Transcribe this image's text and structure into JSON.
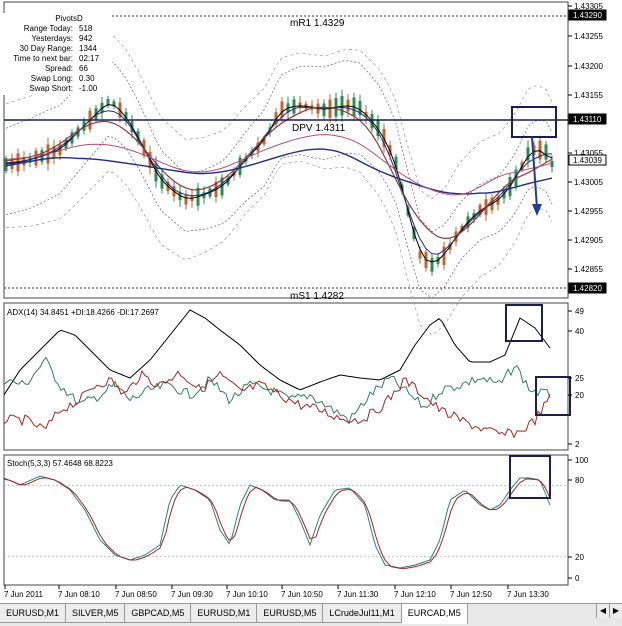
{
  "pivots": {
    "title": "PivotsD",
    "rows": [
      {
        "label": "Range Today:",
        "value": "518"
      },
      {
        "label": "Yesterdays:",
        "value": "942"
      },
      {
        "label": "30 Day Range:",
        "value": "1344"
      },
      {
        "label": "Time to next bar:",
        "value": "02:17"
      },
      {
        "label": "Spread:",
        "value": "66"
      },
      {
        "label": "Swap Long:",
        "value": "0.30"
      },
      {
        "label": "Swap Short:",
        "value": "-1.00"
      }
    ]
  },
  "levels": {
    "mr1": "mR1  1.4329",
    "dpv": "DPV  1.4311",
    "ms1": "mS1  1.4282"
  },
  "price_axis": {
    "ticks": [
      "1.43305",
      "1.43255",
      "1.43200",
      "1.43155",
      "1.43055",
      "1.43005",
      "1.42955",
      "1.42905",
      "1.42855"
    ],
    "boxes": [
      "1.43290",
      "1.43110",
      "1.43039",
      "1.42820"
    ]
  },
  "adx": {
    "label": "ADX(14) 34.8451  +DI:18.4266  -DI:17.2697",
    "ticks": [
      "49",
      "40",
      "25",
      "20",
      "2"
    ]
  },
  "stoch": {
    "label": "Stoch(5,3,3) 57.4648 68.8223",
    "ticks": [
      "100",
      "80",
      "20",
      "0"
    ]
  },
  "time_axis": [
    "7 Jun 2011",
    "7 Jun 08:10",
    "7 Jun 08:50",
    "7 Jun 09:30",
    "7 Jun 10:10",
    "7 Jun 10:50",
    "7 Jun 11:30",
    "7 Jun 12:10",
    "7 Jun 12:50",
    "7 Jun 13:30"
  ],
  "tabs": [
    "EURUSD,M1",
    "SILVER,M5",
    "GBPCAD,M5",
    "EURUSD,M1",
    "EURUSD,M5",
    "LCrudeJul11,M1",
    "EURCAD,M5"
  ],
  "active_tab": "EURCAD,M5",
  "colors": {
    "bull": "#2e8b57",
    "bear": "#c0662b",
    "adx_line": "#000000",
    "plus_di": "#2f7f62",
    "minus_di": "#a0261e",
    "box": "#1b1f4a"
  }
}
